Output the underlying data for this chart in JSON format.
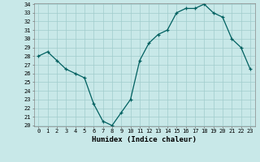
{
  "x": [
    0,
    1,
    2,
    3,
    4,
    5,
    6,
    7,
    8,
    9,
    10,
    11,
    12,
    13,
    14,
    15,
    16,
    17,
    18,
    19,
    20,
    21,
    22,
    23
  ],
  "y": [
    28.0,
    28.5,
    27.5,
    26.5,
    26.0,
    25.5,
    22.5,
    20.5,
    20.0,
    21.5,
    23.0,
    27.5,
    29.5,
    30.5,
    31.0,
    33.0,
    33.5,
    33.5,
    34.0,
    33.0,
    32.5,
    30.0,
    29.0,
    26.5
  ],
  "line_color": "#006060",
  "marker": "+",
  "marker_size": 3,
  "bg_color": "#c8e8e8",
  "grid_color": "#a0cccc",
  "xlabel": "Humidex (Indice chaleur)",
  "ylim": [
    20,
    34
  ],
  "xlim": [
    -0.5,
    23.5
  ],
  "yticks": [
    20,
    21,
    22,
    23,
    24,
    25,
    26,
    27,
    28,
    29,
    30,
    31,
    32,
    33,
    34
  ],
  "xticks": [
    0,
    1,
    2,
    3,
    4,
    5,
    6,
    7,
    8,
    9,
    10,
    11,
    12,
    13,
    14,
    15,
    16,
    17,
    18,
    19,
    20,
    21,
    22,
    23
  ],
  "tick_fontsize": 5,
  "xlabel_fontsize": 6.5,
  "linewidth": 0.9,
  "markeredgewidth": 0.9
}
